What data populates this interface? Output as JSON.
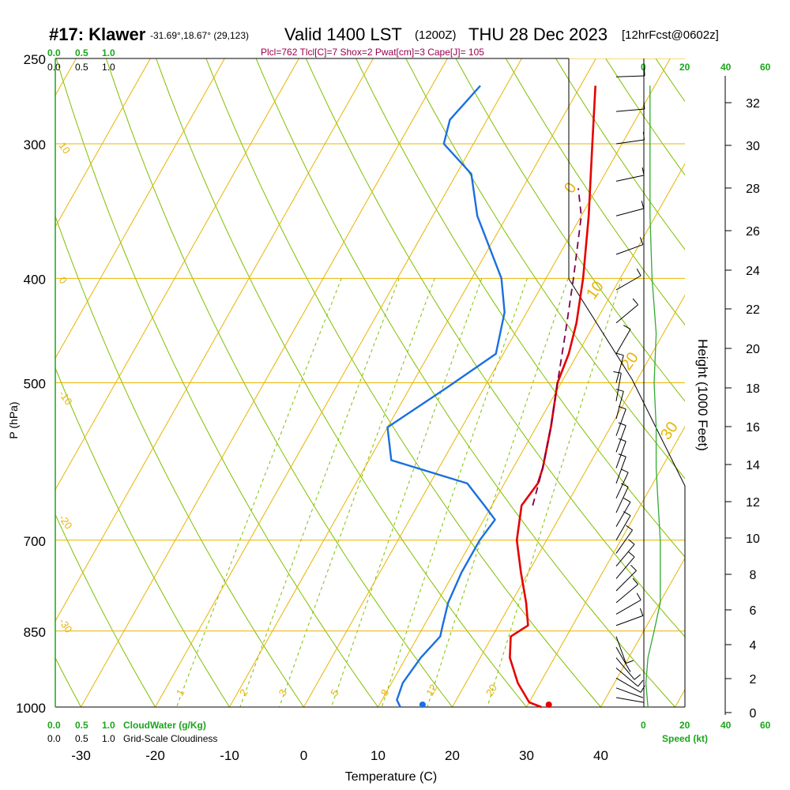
{
  "header": {
    "station": "#17: Klawer",
    "coords": "-31.69°,18.67° (29,123)",
    "valid": "Valid 1400 LST",
    "valid_z": "(1200Z)",
    "date": "THU 28 Dec 2023",
    "fcst": "[12hrFcst@0602z]",
    "params": "Plcl=762 Tlcl[C]=7 Shox=2 Pwat[cm]=3 Cape[J]= 105"
  },
  "top_scale": {
    "cloudwater": [
      "0.0",
      "0.5",
      "1.0"
    ],
    "cloudiness": [
      "0.0",
      "0.5",
      "1.0"
    ]
  },
  "bottom_scale": {
    "cloudwater": [
      "0.0",
      "0.5",
      "1.0"
    ],
    "cloudwater_label": "CloudWater (g/Kg)",
    "cloudiness": [
      "0.0",
      "0.5",
      "1.0"
    ],
    "cloudiness_label": "Grid-Scale Cloudiness"
  },
  "wind_scale": {
    "ticks": [
      "0",
      "20",
      "40",
      "60"
    ],
    "label": "Speed (kt)"
  },
  "colors": {
    "isotherm": "#e8b400",
    "dry_adiabat": "#7fbf00",
    "mixing_ratio": "#7fbf00",
    "temperature": "#e60000",
    "dewpoint": "#1a6fe0",
    "parcel": "#7a004a",
    "header_params": "#99004d",
    "scale_green": "#1aa61a",
    "windspeed": "#33aa33"
  },
  "chart_data": {
    "type": "line",
    "title": "#17: Klawer  Valid 1400 LST (1200Z) THU 28 Dec 2023",
    "xlabel": "Temperature (C)",
    "ylabel": "P (hPa)",
    "y2label": "Height (1000 Feet)",
    "xticks": [
      -30,
      -20,
      -10,
      0,
      10,
      20,
      30,
      40
    ],
    "yticks": [
      250,
      300,
      400,
      500,
      700,
      850,
      1000
    ],
    "y_scale": "log-pressure (inverted)",
    "height_ticks": [
      "0",
      "2",
      "4",
      "6",
      "8",
      "10",
      "12",
      "14",
      "16",
      "18",
      "20",
      "22",
      "24",
      "26",
      "28",
      "30",
      "32"
    ],
    "isotherm_labels": [
      "10",
      "0",
      "-10",
      "-20",
      "-30",
      "0",
      "10",
      "20",
      "30"
    ],
    "mixing_ratio_labels": [
      "1",
      "2",
      "3",
      "5",
      "8",
      "12",
      "20"
    ],
    "series": [
      {
        "name": "Temperature",
        "unit": "C",
        "points": [
          [
            1000,
            32
          ],
          [
            990,
            30
          ],
          [
            950,
            27
          ],
          [
            900,
            24
          ],
          [
            860,
            22.5
          ],
          [
            840,
            24
          ],
          [
            800,
            22
          ],
          [
            750,
            19
          ],
          [
            700,
            16
          ],
          [
            650,
            14
          ],
          [
            620,
            14.5
          ],
          [
            600,
            14
          ],
          [
            550,
            12
          ],
          [
            500,
            9.5
          ],
          [
            470,
            8.8
          ],
          [
            440,
            7.5
          ],
          [
            400,
            5
          ],
          [
            350,
            1
          ],
          [
            300,
            -4
          ],
          [
            265,
            -8
          ]
        ]
      },
      {
        "name": "Dewpoint",
        "unit": "C",
        "points": [
          [
            1000,
            13
          ],
          [
            985,
            12
          ],
          [
            950,
            11.5
          ],
          [
            900,
            12
          ],
          [
            860,
            13
          ],
          [
            840,
            12.5
          ],
          [
            800,
            11.5
          ],
          [
            750,
            11
          ],
          [
            700,
            11
          ],
          [
            670,
            11.5
          ],
          [
            650,
            9
          ],
          [
            620,
            5
          ],
          [
            590,
            -7
          ],
          [
            550,
            -10
          ],
          [
            505,
            -5
          ],
          [
            470,
            -1
          ],
          [
            430,
            -3
          ],
          [
            400,
            -6
          ],
          [
            350,
            -14
          ],
          [
            320,
            -18
          ],
          [
            300,
            -24
          ],
          [
            285,
            -25
          ],
          [
            265,
            -23.5
          ]
        ]
      },
      {
        "name": "Parcel",
        "unit": "C",
        "points": [
          [
            650,
            15.5
          ],
          [
            600,
            14
          ],
          [
            550,
            12
          ],
          [
            500,
            9.5
          ],
          [
            450,
            6.8
          ],
          [
            400,
            3.7
          ],
          [
            350,
            0
          ],
          [
            330,
            -2.5
          ]
        ]
      }
    ],
    "surface": {
      "temperature": 33,
      "dewpoint": 16
    },
    "wind_speed": {
      "unit": "kt",
      "points": [
        [
          1000,
          2
        ],
        [
          950,
          1
        ],
        [
          900,
          2
        ],
        [
          850,
          5
        ],
        [
          800,
          8
        ],
        [
          750,
          8
        ],
        [
          700,
          8
        ],
        [
          650,
          7
        ],
        [
          600,
          6
        ],
        [
          550,
          6
        ],
        [
          500,
          5
        ],
        [
          450,
          6
        ],
        [
          400,
          4
        ],
        [
          350,
          3
        ],
        [
          300,
          3
        ],
        [
          265,
          3
        ]
      ]
    },
    "wind_barbs": [
      {
        "p": 1000,
        "dir": 270,
        "spd": 2
      },
      {
        "p": 980,
        "dir": 280,
        "spd": 3
      },
      {
        "p": 960,
        "dir": 290,
        "spd": 4
      },
      {
        "p": 940,
        "dir": 300,
        "spd": 5
      },
      {
        "p": 920,
        "dir": 310,
        "spd": 6
      },
      {
        "p": 900,
        "dir": 320,
        "spd": 5
      },
      {
        "p": 880,
        "dir": 330,
        "spd": 4
      },
      {
        "p": 860,
        "dir": 340,
        "spd": 6
      },
      {
        "p": 840,
        "dir": 250,
        "spd": 8
      },
      {
        "p": 820,
        "dir": 240,
        "spd": 9
      },
      {
        "p": 800,
        "dir": 230,
        "spd": 10
      },
      {
        "p": 780,
        "dir": 225,
        "spd": 10
      },
      {
        "p": 760,
        "dir": 220,
        "spd": 11
      },
      {
        "p": 740,
        "dir": 220,
        "spd": 11
      },
      {
        "p": 720,
        "dir": 215,
        "spd": 10
      },
      {
        "p": 700,
        "dir": 210,
        "spd": 10
      },
      {
        "p": 680,
        "dir": 210,
        "spd": 9
      },
      {
        "p": 660,
        "dir": 205,
        "spd": 9
      },
      {
        "p": 640,
        "dir": 205,
        "spd": 8
      },
      {
        "p": 620,
        "dir": 200,
        "spd": 8
      },
      {
        "p": 600,
        "dir": 200,
        "spd": 8
      },
      {
        "p": 580,
        "dir": 200,
        "spd": 7
      },
      {
        "p": 560,
        "dir": 200,
        "spd": 7
      },
      {
        "p": 540,
        "dir": 195,
        "spd": 6
      },
      {
        "p": 520,
        "dir": 190,
        "spd": 5
      },
      {
        "p": 500,
        "dir": 195,
        "spd": 5
      },
      {
        "p": 470,
        "dir": 210,
        "spd": 5
      },
      {
        "p": 440,
        "dir": 230,
        "spd": 5
      },
      {
        "p": 410,
        "dir": 240,
        "spd": 6
      },
      {
        "p": 380,
        "dir": 250,
        "spd": 7
      },
      {
        "p": 350,
        "dir": 255,
        "spd": 8
      },
      {
        "p": 325,
        "dir": 258,
        "spd": 8
      },
      {
        "p": 300,
        "dir": 262,
        "spd": 8
      },
      {
        "p": 280,
        "dir": 265,
        "spd": 8
      },
      {
        "p": 260,
        "dir": 268,
        "spd": 7
      }
    ]
  }
}
